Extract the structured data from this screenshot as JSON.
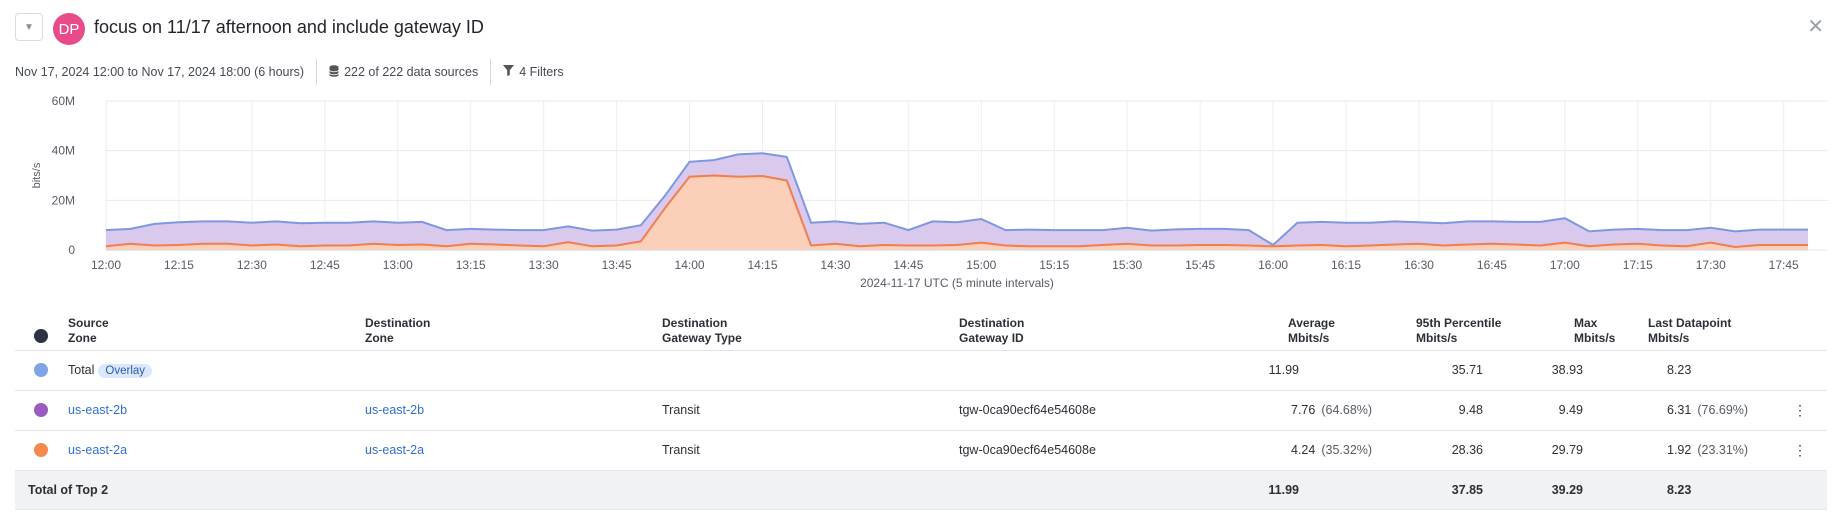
{
  "header": {
    "avatar": "DP",
    "title": "focus on 11/17 afternoon and include gateway ID",
    "toggle_icon": "chevron-down-icon",
    "close_icon": "close-icon"
  },
  "meta": {
    "time_range": "Nov 17, 2024 12:00 to Nov 17, 2024 18:00 (6 hours)",
    "data_sources": "222 of 222 data sources",
    "filters": "4 Filters"
  },
  "chart_data": {
    "type": "area",
    "ylabel": "bits/s",
    "xlabel": "2024-11-17 UTC (5 minute intervals)",
    "yticks": [
      "0",
      "20M",
      "40M",
      "60M"
    ],
    "ylim": [
      0,
      60
    ],
    "xticks": [
      "12:00",
      "12:15",
      "12:30",
      "12:45",
      "13:00",
      "13:15",
      "13:30",
      "13:45",
      "14:00",
      "14:15",
      "14:30",
      "14:45",
      "15:00",
      "15:15",
      "15:30",
      "15:45",
      "16:00",
      "16:15",
      "16:30",
      "16:45",
      "17:00",
      "17:15",
      "17:30",
      "17:45"
    ],
    "x_start": "12:00",
    "x_interval_minutes": 5,
    "series": [
      {
        "color": "#7f97e0",
        "fill": "#d9c9ec",
        "values": [
          8,
          8.5,
          10.5,
          11.2,
          11.5,
          11.5,
          11,
          11.5,
          10.8,
          11,
          11,
          11.5,
          11,
          11.3,
          8,
          8.5,
          8.2,
          8,
          8,
          9.5,
          7.8,
          8.2,
          10,
          22,
          35.5,
          36.2,
          38.5,
          39,
          37.5,
          11,
          11.5,
          10.5,
          11,
          8,
          11.5,
          11.2,
          12.5,
          8,
          8.2,
          8,
          8,
          8,
          9,
          7.8,
          8.3,
          8.5,
          8.5,
          8,
          2,
          11,
          11.3,
          11,
          11,
          11.5,
          11.2,
          10.8,
          11.5,
          11.5,
          11.3,
          11.3,
          12.8,
          7.5,
          8.2,
          8.5,
          8,
          8,
          9,
          7.5,
          8.2,
          8.2,
          8.2
        ]
      },
      {
        "color": "#f07e4f",
        "fill": "#fcd0b8",
        "values": [
          1.5,
          2.5,
          1.8,
          2,
          2.5,
          2.5,
          1.8,
          2.2,
          1.5,
          1.8,
          1.8,
          2.5,
          2,
          2.2,
          1.5,
          2.5,
          2.2,
          1.8,
          1.5,
          3.2,
          1.5,
          1.8,
          3.5,
          17,
          29.5,
          30,
          29.5,
          29.8,
          28,
          1.8,
          2.5,
          1.5,
          2,
          1.8,
          1.8,
          2,
          3,
          1.8,
          1.5,
          1.5,
          1.5,
          2,
          2.5,
          1.8,
          1.8,
          2,
          2,
          1.8,
          1.5,
          1.8,
          2,
          1.5,
          1.8,
          2.2,
          2.5,
          1.8,
          2.2,
          2.5,
          2.2,
          1.8,
          3,
          1.5,
          2.2,
          2.5,
          1.8,
          1.5,
          3,
          1.2,
          2,
          2,
          2
        ]
      }
    ]
  },
  "table": {
    "headers": {
      "src": [
        "Source",
        "Zone"
      ],
      "dst": [
        "Destination",
        "Zone"
      ],
      "gwtype": [
        "Destination",
        "Gateway Type"
      ],
      "gwid": [
        "Destination",
        "Gateway ID"
      ],
      "avg": [
        "Average",
        "Mbits/s"
      ],
      "p95": [
        "95th Percentile",
        "Mbits/s"
      ],
      "max": [
        "Max",
        "Mbits/s"
      ],
      "last": [
        "Last Datapoint",
        "Mbits/s"
      ]
    },
    "header_dot_color": "#2b3440",
    "total": {
      "color": "#7ea3e6",
      "label": "Total",
      "badge": "Overlay",
      "avg": "11.99",
      "p95": "35.71",
      "max": "38.93",
      "last": "8.23"
    },
    "rows": [
      {
        "color": "#9a5cc0",
        "src": "us-east-2b",
        "dst": "us-east-2b",
        "gwtype": "Transit",
        "gwid": "tgw-0ca90ecf64e54608e",
        "avg": "7.76",
        "avg_pct": "(64.68%)",
        "p95": "9.48",
        "max": "9.49",
        "last": "6.31",
        "last_pct": "(76.69%)"
      },
      {
        "color": "#f6894f",
        "src": "us-east-2a",
        "dst": "us-east-2a",
        "gwtype": "Transit",
        "gwid": "tgw-0ca90ecf64e54608e",
        "avg": "4.24",
        "avg_pct": "(35.32%)",
        "p95": "28.36",
        "max": "29.79",
        "last": "1.92",
        "last_pct": "(23.31%)"
      }
    ],
    "footer": {
      "label": "Total of Top 2",
      "avg": "11.99",
      "p95": "37.85",
      "max": "39.29",
      "last": "8.23"
    }
  }
}
